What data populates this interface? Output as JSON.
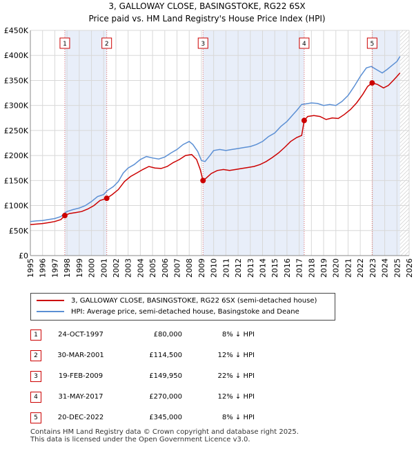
{
  "title_line1": "3, GALLOWAY CLOSE, BASINGSTOKE, RG22 6SX",
  "title_line2": "Price paid vs. HM Land Registry's House Price Index (HPI)",
  "chart_data": {
    "type": "line",
    "xlim": [
      1995,
      2026
    ],
    "ylim": [
      0,
      450000
    ],
    "y_ticks": [
      {
        "value": 0,
        "label": "£0"
      },
      {
        "value": 50000,
        "label": "£50K"
      },
      {
        "value": 100000,
        "label": "£100K"
      },
      {
        "value": 150000,
        "label": "£150K"
      },
      {
        "value": 200000,
        "label": "£200K"
      },
      {
        "value": 250000,
        "label": "£250K"
      },
      {
        "value": 300000,
        "label": "£300K"
      },
      {
        "value": 350000,
        "label": "£350K"
      },
      {
        "value": 400000,
        "label": "£400K"
      },
      {
        "value": 450000,
        "label": "£450K"
      }
    ],
    "x_ticks": [
      "1995",
      "1996",
      "1997",
      "1998",
      "1999",
      "2000",
      "2001",
      "2002",
      "2003",
      "2004",
      "2005",
      "2006",
      "2007",
      "2008",
      "2009",
      "2010",
      "2011",
      "2012",
      "2013",
      "2014",
      "2015",
      "2016",
      "2017",
      "2018",
      "2019",
      "2020",
      "2021",
      "2022",
      "2023",
      "2024",
      "2025",
      "2026"
    ],
    "grid": true,
    "future_hatch_from": 2025.25,
    "series": [
      {
        "name": "HPI: Average price, semi-detached house, Basingstoke and Deane",
        "color": "#5b8fd4",
        "points": [
          [
            1995.0,
            68000
          ],
          [
            1995.5,
            69500
          ],
          [
            1996.0,
            70000
          ],
          [
            1996.5,
            72000
          ],
          [
            1997.0,
            74000
          ],
          [
            1997.5,
            78000
          ],
          [
            1997.8,
            85000
          ],
          [
            1998.0,
            88000
          ],
          [
            1998.5,
            92000
          ],
          [
            1999.0,
            95000
          ],
          [
            1999.5,
            100000
          ],
          [
            2000.0,
            108000
          ],
          [
            2000.5,
            118000
          ],
          [
            2001.0,
            122000
          ],
          [
            2001.3,
            130000
          ],
          [
            2001.8,
            138000
          ],
          [
            2002.2,
            148000
          ],
          [
            2002.6,
            165000
          ],
          [
            2003.0,
            175000
          ],
          [
            2003.5,
            182000
          ],
          [
            2004.0,
            192000
          ],
          [
            2004.5,
            198000
          ],
          [
            2005.0,
            195000
          ],
          [
            2005.5,
            193000
          ],
          [
            2006.0,
            197000
          ],
          [
            2006.5,
            205000
          ],
          [
            2007.0,
            212000
          ],
          [
            2007.5,
            222000
          ],
          [
            2008.0,
            228000
          ],
          [
            2008.3,
            222000
          ],
          [
            2008.7,
            208000
          ],
          [
            2009.0,
            190000
          ],
          [
            2009.3,
            188000
          ],
          [
            2009.7,
            200000
          ],
          [
            2010.0,
            210000
          ],
          [
            2010.5,
            212000
          ],
          [
            2011.0,
            210000
          ],
          [
            2011.5,
            212000
          ],
          [
            2012.0,
            214000
          ],
          [
            2012.5,
            216000
          ],
          [
            2013.0,
            218000
          ],
          [
            2013.5,
            222000
          ],
          [
            2014.0,
            228000
          ],
          [
            2014.5,
            238000
          ],
          [
            2015.0,
            245000
          ],
          [
            2015.5,
            258000
          ],
          [
            2016.0,
            268000
          ],
          [
            2016.5,
            282000
          ],
          [
            2016.8,
            290000
          ],
          [
            2017.2,
            302000
          ],
          [
            2017.5,
            303000
          ],
          [
            2018.0,
            305000
          ],
          [
            2018.5,
            304000
          ],
          [
            2019.0,
            300000
          ],
          [
            2019.5,
            302000
          ],
          [
            2020.0,
            300000
          ],
          [
            2020.5,
            308000
          ],
          [
            2021.0,
            320000
          ],
          [
            2021.5,
            338000
          ],
          [
            2022.0,
            358000
          ],
          [
            2022.5,
            375000
          ],
          [
            2022.9,
            378000
          ],
          [
            2023.3,
            372000
          ],
          [
            2023.8,
            365000
          ],
          [
            2024.2,
            372000
          ],
          [
            2024.6,
            380000
          ],
          [
            2025.0,
            388000
          ],
          [
            2025.25,
            398000
          ]
        ]
      },
      {
        "name": "3, GALLOWAY CLOSE, BASINGSTOKE, RG22 6SX (semi-detached house)",
        "color": "#cc0000",
        "points": [
          [
            1995.0,
            62000
          ],
          [
            1995.5,
            63000
          ],
          [
            1996.0,
            64000
          ],
          [
            1996.5,
            66000
          ],
          [
            1997.0,
            68000
          ],
          [
            1997.5,
            72000
          ],
          [
            1997.82,
            80000
          ],
          [
            1998.2,
            84000
          ],
          [
            1998.7,
            86000
          ],
          [
            1999.2,
            88000
          ],
          [
            1999.7,
            93000
          ],
          [
            2000.2,
            100000
          ],
          [
            2000.7,
            110000
          ],
          [
            2001.25,
            114500
          ],
          [
            2001.7,
            122000
          ],
          [
            2002.2,
            132000
          ],
          [
            2002.7,
            148000
          ],
          [
            2003.2,
            158000
          ],
          [
            2003.7,
            165000
          ],
          [
            2004.2,
            172000
          ],
          [
            2004.7,
            178000
          ],
          [
            2005.2,
            175000
          ],
          [
            2005.7,
            174000
          ],
          [
            2006.2,
            178000
          ],
          [
            2006.7,
            186000
          ],
          [
            2007.2,
            192000
          ],
          [
            2007.7,
            200000
          ],
          [
            2008.2,
            202000
          ],
          [
            2008.6,
            192000
          ],
          [
            2008.9,
            172000
          ],
          [
            2009.13,
            149950
          ],
          [
            2009.4,
            155000
          ],
          [
            2009.8,
            164000
          ],
          [
            2010.3,
            170000
          ],
          [
            2010.8,
            172000
          ],
          [
            2011.3,
            170000
          ],
          [
            2011.8,
            172000
          ],
          [
            2012.3,
            174000
          ],
          [
            2012.8,
            176000
          ],
          [
            2013.3,
            178000
          ],
          [
            2013.8,
            182000
          ],
          [
            2014.3,
            188000
          ],
          [
            2014.8,
            196000
          ],
          [
            2015.3,
            205000
          ],
          [
            2015.8,
            216000
          ],
          [
            2016.3,
            228000
          ],
          [
            2016.8,
            236000
          ],
          [
            2017.2,
            240000
          ],
          [
            2017.41,
            270000
          ],
          [
            2017.7,
            278000
          ],
          [
            2018.2,
            280000
          ],
          [
            2018.7,
            278000
          ],
          [
            2019.2,
            272000
          ],
          [
            2019.7,
            275000
          ],
          [
            2020.2,
            274000
          ],
          [
            2020.7,
            282000
          ],
          [
            2021.2,
            292000
          ],
          [
            2021.7,
            305000
          ],
          [
            2022.2,
            322000
          ],
          [
            2022.6,
            338000
          ],
          [
            2022.97,
            345000
          ],
          [
            2023.4,
            342000
          ],
          [
            2023.9,
            335000
          ],
          [
            2024.3,
            340000
          ],
          [
            2024.7,
            350000
          ],
          [
            2025.0,
            358000
          ],
          [
            2025.25,
            365000
          ]
        ]
      }
    ],
    "transactions": [
      {
        "label": "1",
        "date": "24-OCT-1997",
        "x": 1997.82,
        "price": 80000,
        "price_text": "£80,000",
        "hpi": "8% ↓ HPI"
      },
      {
        "label": "2",
        "date": "30-MAR-2001",
        "x": 2001.25,
        "price": 114500,
        "price_text": "£114,500",
        "hpi": "12% ↓ HPI"
      },
      {
        "label": "3",
        "date": "19-FEB-2009",
        "x": 2009.13,
        "price": 149950,
        "price_text": "£149,950",
        "hpi": "22% ↓ HPI"
      },
      {
        "label": "4",
        "date": "31-MAY-2017",
        "x": 2017.41,
        "price": 270000,
        "price_text": "£270,000",
        "hpi": "12% ↓ HPI"
      },
      {
        "label": "5",
        "date": "20-DEC-2022",
        "x": 2022.97,
        "price": 345000,
        "price_text": "£345,000",
        "hpi": "8% ↓ HPI"
      }
    ]
  },
  "legend": {
    "property_label": "3, GALLOWAY CLOSE, BASINGSTOKE, RG22 6SX (semi-detached house)",
    "hpi_label": "HPI: Average price, semi-detached house, Basingstoke and Deane",
    "property_color": "#cc0000",
    "hpi_color": "#5b8fd4"
  },
  "footer_line1": "Contains HM Land Registry data © Crown copyright and database right 2025.",
  "footer_line2": "This data is licensed under the Open Government Licence v3.0."
}
